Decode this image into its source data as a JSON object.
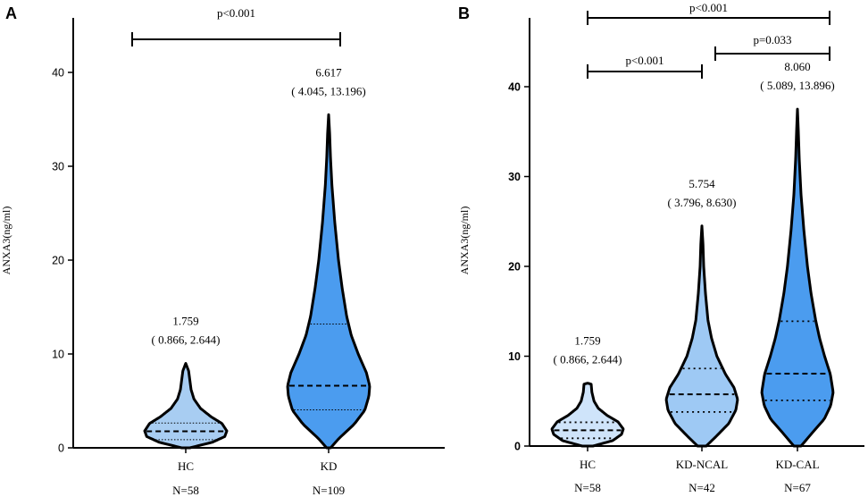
{
  "chart_data": [
    {
      "panel": "A",
      "type": "violin",
      "ylabel": "ANXA3(ng/ml)",
      "ylim": [
        0,
        45
      ],
      "yticks": [
        0,
        10,
        20,
        30,
        40
      ],
      "groups": [
        {
          "name": "HC",
          "n_label": "N=58",
          "median": 1.759,
          "q1": 0.866,
          "q3": 2.644,
          "min": 0.0,
          "max": 9.0,
          "median_text": "1.759",
          "iqr_text": "( 0.866,  2.644)",
          "color": "#a8cdf2",
          "profile": [
            [
              0.0,
              0.1
            ],
            [
              0.6,
              0.65
            ],
            [
              1.2,
              0.95
            ],
            [
              1.8,
              1.0
            ],
            [
              2.6,
              0.88
            ],
            [
              3.3,
              0.62
            ],
            [
              4.2,
              0.36
            ],
            [
              5.2,
              0.2
            ],
            [
              6.2,
              0.13
            ],
            [
              7.2,
              0.1
            ],
            [
              8.2,
              0.07
            ],
            [
              9.0,
              0.0
            ]
          ]
        },
        {
          "name": "KD",
          "n_label": "N=109",
          "median": 6.617,
          "q1": 4.045,
          "q3": 13.196,
          "min": 0.0,
          "max": 35.5,
          "median_text": "6.617",
          "iqr_text": "( 4.045,  13.196)",
          "color": "#4b9cef",
          "profile": [
            [
              0.0,
              0.05
            ],
            [
              1.0,
              0.25
            ],
            [
              2.5,
              0.62
            ],
            [
              4.0,
              0.88
            ],
            [
              5.5,
              0.98
            ],
            [
              6.6,
              1.0
            ],
            [
              8.0,
              0.92
            ],
            [
              10.0,
              0.72
            ],
            [
              12.0,
              0.55
            ],
            [
              14.0,
              0.44
            ],
            [
              17.0,
              0.33
            ],
            [
              20.0,
              0.24
            ],
            [
              24.0,
              0.15
            ],
            [
              28.0,
              0.08
            ],
            [
              31.0,
              0.045
            ],
            [
              33.5,
              0.025
            ],
            [
              35.5,
              0.0
            ]
          ]
        }
      ],
      "comparisons": [
        {
          "from": "HC",
          "to": "KD",
          "label": "p<0.001"
        }
      ]
    },
    {
      "panel": "B",
      "type": "violin",
      "ylabel": "ANXA3(ng/ml)",
      "ylim": [
        0,
        45
      ],
      "yticks": [
        0,
        10,
        20,
        30,
        40
      ],
      "groups": [
        {
          "name": "HC",
          "n_label": "N=58",
          "median": 1.759,
          "q1": 0.866,
          "q3": 2.644,
          "min": 0.0,
          "max": 7.0,
          "median_text": "1.759",
          "iqr_text": "( 0.866,  2.644)",
          "color": "#cfe4fa",
          "profile": [
            [
              0.0,
              0.15
            ],
            [
              0.6,
              0.7
            ],
            [
              1.3,
              0.95
            ],
            [
              1.9,
              1.0
            ],
            [
              2.7,
              0.85
            ],
            [
              3.4,
              0.55
            ],
            [
              4.2,
              0.3
            ],
            [
              5.0,
              0.18
            ],
            [
              6.0,
              0.12
            ],
            [
              6.9,
              0.1
            ],
            [
              7.0,
              0.0
            ]
          ]
        },
        {
          "name": "KD-NCAL",
          "n_label": "N=42",
          "median": 5.754,
          "q1": 3.796,
          "q3": 8.63,
          "min": 0.0,
          "max": 24.5,
          "median_text": "5.754",
          "iqr_text": "( 3.796,  8.630)",
          "color": "#9ec9f4",
          "profile": [
            [
              0.0,
              0.12
            ],
            [
              1.0,
              0.38
            ],
            [
              2.5,
              0.75
            ],
            [
              4.0,
              0.95
            ],
            [
              5.2,
              1.0
            ],
            [
              6.5,
              0.9
            ],
            [
              8.0,
              0.66
            ],
            [
              10.0,
              0.42
            ],
            [
              12.0,
              0.27
            ],
            [
              14.0,
              0.17
            ],
            [
              17.0,
              0.1
            ],
            [
              20.0,
              0.05
            ],
            [
              22.5,
              0.03
            ],
            [
              24.5,
              0.0
            ]
          ]
        },
        {
          "name": "KD-CAL",
          "n_label": "N=67",
          "median": 8.06,
          "q1": 5.089,
          "q3": 13.896,
          "min": 0.0,
          "max": 37.5,
          "median_text": "8.060",
          "iqr_text": "( 5.089,  13.896)",
          "color": "#4b9cef",
          "profile": [
            [
              0.0,
              0.1
            ],
            [
              1.5,
              0.42
            ],
            [
              3.0,
              0.75
            ],
            [
              4.5,
              0.93
            ],
            [
              6.0,
              1.0
            ],
            [
              8.0,
              0.92
            ],
            [
              10.0,
              0.76
            ],
            [
              12.0,
              0.62
            ],
            [
              14.0,
              0.51
            ],
            [
              17.0,
              0.38
            ],
            [
              20.0,
              0.28
            ],
            [
              24.0,
              0.18
            ],
            [
              28.0,
              0.1
            ],
            [
              32.0,
              0.05
            ],
            [
              35.0,
              0.025
            ],
            [
              37.5,
              0.0
            ]
          ]
        }
      ],
      "comparisons": [
        {
          "from": "HC",
          "to": "KD-CAL",
          "label": "p<0.001"
        },
        {
          "from": "HC",
          "to": "KD-NCAL",
          "label": "p<0.001"
        },
        {
          "from": "KD-NCAL",
          "to": "KD-CAL",
          "label": "p=0.033"
        }
      ]
    }
  ]
}
